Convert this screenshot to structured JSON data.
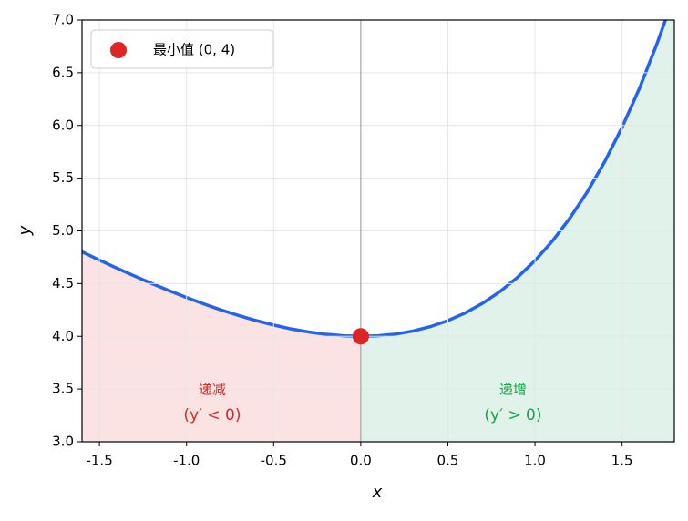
{
  "chart_data": {
    "type": "line",
    "xlabel": "x",
    "ylabel": "y",
    "xlim": [
      -1.6,
      1.8
    ],
    "ylim": [
      3,
      7
    ],
    "xticks": [
      -1.5,
      {
        "value": -1,
        "label": "-1.0"
      },
      -0.5,
      {
        "value": 0,
        "label": "0.0"
      },
      0.5,
      {
        "value": 1,
        "label": "1.0"
      },
      1.5
    ],
    "yticks": [
      {
        "value": 3,
        "label": "3.0"
      },
      3.5,
      {
        "value": 4,
        "label": "4.0"
      },
      4.5,
      {
        "value": 5,
        "label": "5.0"
      },
      5.5,
      {
        "value": 6,
        "label": "6.0"
      },
      6.5,
      {
        "value": 7,
        "label": "7.0"
      }
    ],
    "grid": true,
    "legend": "upper left",
    "series": [
      {
        "color": "#2563eb",
        "x": [
          -1.6,
          -1.5,
          -1.4,
          -1.3,
          -1.2,
          -1.1,
          -1.0,
          -0.9,
          -0.8,
          -0.7,
          -0.6,
          -0.5,
          -0.4,
          -0.3,
          -0.2,
          -0.1,
          0,
          0.1,
          0.2,
          0.3,
          0.4,
          0.5,
          0.6,
          0.7,
          0.8,
          0.9,
          1.0,
          1.1,
          1.2,
          1.3,
          1.4,
          1.5,
          1.6,
          1.7,
          1.75
        ],
        "values": [
          4.802,
          4.723,
          4.647,
          4.573,
          4.501,
          4.433,
          4.368,
          4.307,
          4.249,
          4.197,
          4.149,
          4.107,
          4.07,
          4.041,
          4.019,
          4.005,
          4.0,
          4.005,
          4.021,
          4.05,
          4.092,
          4.149,
          4.222,
          4.314,
          4.426,
          4.56,
          4.718,
          4.904,
          5.12,
          5.369,
          5.655,
          5.982,
          6.353,
          6.774,
          7.005
        ]
      }
    ],
    "point": {
      "name": "最小值 (0, 4)",
      "color": "#dc2626",
      "x": 0,
      "y": 4
    },
    "annotations": [
      {
        "label": "递减",
        "condition": "(y′ < 0)",
        "color": "#dc2626",
        "fill": "#fbe3e3"
      },
      {
        "label": "递增",
        "condition": "(y′ > 0)",
        "color": "#16a34a",
        "fill": "#e0f2e9"
      }
    ]
  }
}
